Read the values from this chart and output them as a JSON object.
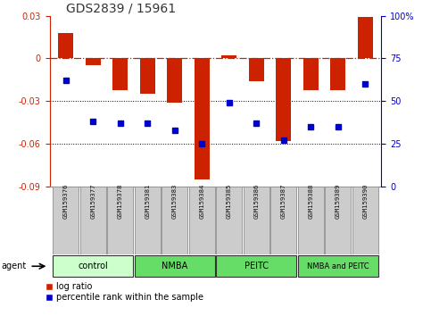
{
  "title": "GDS2839 / 15961",
  "samples": [
    "GSM159376",
    "GSM159377",
    "GSM159378",
    "GSM159381",
    "GSM159383",
    "GSM159384",
    "GSM159385",
    "GSM159386",
    "GSM159387",
    "GSM159388",
    "GSM159389",
    "GSM159390"
  ],
  "log_ratio": [
    0.018,
    -0.005,
    -0.022,
    -0.025,
    -0.031,
    -0.085,
    0.002,
    -0.016,
    -0.058,
    -0.022,
    -0.022,
    0.029
  ],
  "percentile_rank": [
    62,
    38,
    37,
    37,
    33,
    25,
    49,
    37,
    27,
    35,
    35,
    60
  ],
  "groups": [
    {
      "label": "control",
      "start": 0,
      "end": 3,
      "color": "#ccffcc"
    },
    {
      "label": "NMBA",
      "start": 3,
      "end": 6,
      "color": "#66dd66"
    },
    {
      "label": "PEITC",
      "start": 6,
      "end": 9,
      "color": "#66dd66"
    },
    {
      "label": "NMBA and PEITC",
      "start": 9,
      "end": 12,
      "color": "#66dd66"
    }
  ],
  "ylim_left": [
    -0.09,
    0.03
  ],
  "ylim_right": [
    0,
    100
  ],
  "yticks_left": [
    -0.09,
    -0.06,
    -0.03,
    0.0,
    0.03
  ],
  "yticks_right": [
    0,
    25,
    50,
    75,
    100
  ],
  "bar_color": "#cc2200",
  "dot_color": "#0000cc",
  "hline_color": "#cc2200",
  "dotted_line_color": "#000000",
  "background_color": "#ffffff",
  "group_colors": [
    "#ccffcc",
    "#66dd66",
    "#66dd66",
    "#66dd66"
  ]
}
